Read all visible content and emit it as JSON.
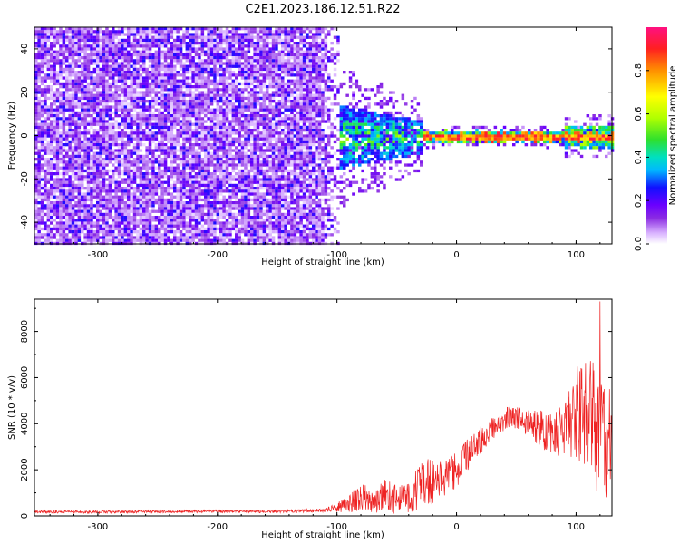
{
  "chart_data": [
    {
      "type": "heatmap",
      "title": "C2E1.2023.186.12.51.R22",
      "xlabel": "Height of straight line (km)",
      "ylabel": "Frequency (Hz)",
      "xlim": [
        -353,
        130
      ],
      "ylim": [
        -50,
        50
      ],
      "x_ticks": [
        -300,
        -200,
        -100,
        0,
        100
      ],
      "y_ticks": [
        -40,
        -20,
        0,
        20,
        40
      ],
      "grid": false,
      "colorbar": {
        "label": "Normalized spectral amplitude",
        "range": [
          0,
          1
        ],
        "ticks": [
          "0.0",
          "0.2",
          "0.4",
          "0.6",
          "0.8"
        ],
        "tick_values": [
          0.0,
          0.2,
          0.4,
          0.6,
          0.8
        ],
        "colormap": "rainbow (white → purple → blue → cyan → green → yellow → red → magenta)",
        "colors": [
          "#ffffff",
          "#d9b3ff",
          "#8a2be2",
          "#6a00ff",
          "#1010ff",
          "#00b8ff",
          "#00e0c0",
          "#2ee02e",
          "#b0ff00",
          "#ffff00",
          "#ff9000",
          "#ff2020",
          "#ff1080"
        ]
      },
      "regions": [
        {
          "name": "noise",
          "x_range": [
            -353,
            -100
          ],
          "frequency_range_hz": [
            -50,
            50
          ],
          "amplitude_range": [
            0.05,
            0.25
          ],
          "color": "purple"
        },
        {
          "name": "transition",
          "x_range": [
            -100,
            -30
          ],
          "frequency_range_hz": [
            -15,
            15
          ],
          "amplitude_range": [
            0.2,
            0.6
          ],
          "color": "blue/cyan/green"
        },
        {
          "name": "signal line",
          "x_range": [
            -30,
            130
          ],
          "frequency_hz": 0,
          "amplitude_range": [
            0.7,
            0.95
          ],
          "color": "red/yellow"
        }
      ]
    },
    {
      "type": "line",
      "xlabel": "Height of straight line (km)",
      "ylabel": "SNR (10 * v/v)",
      "xlim": [
        -353,
        130
      ],
      "ylim": [
        0,
        9400
      ],
      "x_ticks": [
        -300,
        -200,
        -100,
        0,
        100
      ],
      "y_ticks": [
        0,
        2000,
        4000,
        6000,
        8000
      ],
      "grid": false,
      "series": [
        {
          "color": "#ee2222",
          "x": [
            -353,
            -300,
            -250,
            -200,
            -150,
            -110,
            -100,
            -90,
            -80,
            -70,
            -60,
            -50,
            -40,
            -30,
            -20,
            -10,
            0,
            10,
            20,
            30,
            40,
            50,
            60,
            70,
            80,
            90,
            100,
            110,
            120,
            130
          ],
          "y": [
            180,
            170,
            180,
            200,
            180,
            250,
            350,
            550,
            800,
            700,
            900,
            700,
            800,
            1400,
            1500,
            1700,
            2000,
            2700,
            3300,
            3800,
            4200,
            4300,
            4100,
            3800,
            3600,
            3800,
            4200,
            4500,
            3500,
            2500
          ],
          "peak_max": 9300,
          "noise_amplitude": [
            60,
            60,
            60,
            60,
            60,
            80,
            200,
            400,
            600,
            600,
            700,
            700,
            800,
            1000,
            1000,
            900,
            800,
            700,
            600,
            500,
            500,
            500,
            600,
            800,
            1000,
            1300,
            1800,
            2500,
            3000,
            2500
          ]
        }
      ]
    }
  ]
}
